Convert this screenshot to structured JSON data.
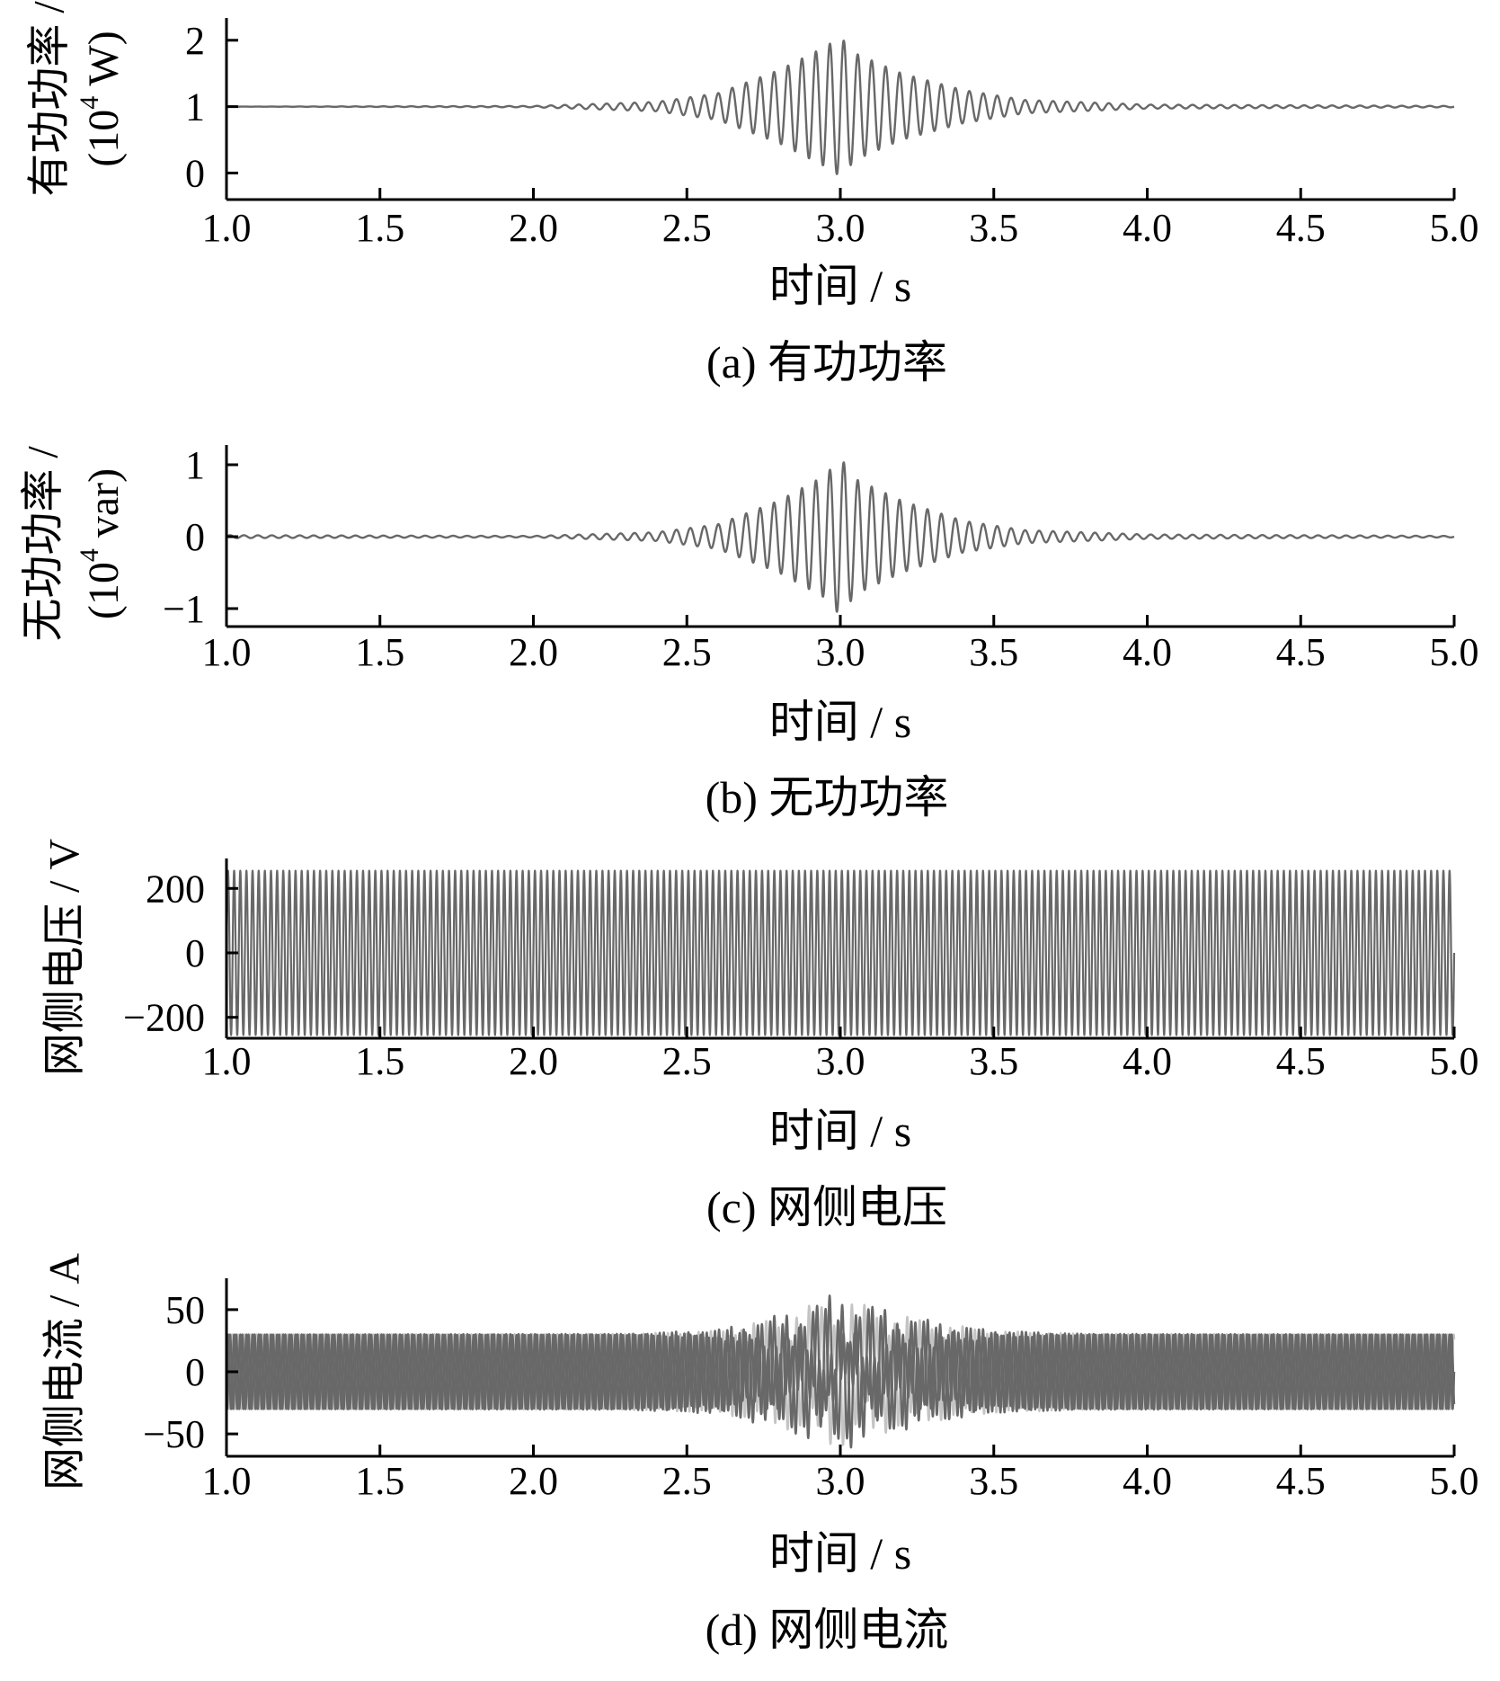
{
  "colors": {
    "signal_dark": "#686868",
    "signal_light": "#c4c4c4",
    "axis": "#000000"
  },
  "chart_data": [
    {
      "type": "line",
      "panel": "a",
      "caption": "(a)  有功功率",
      "xlabel": "时间 / s",
      "ylabel_line1": "有功功率 /",
      "ylabel_line2_pre": "(10",
      "ylabel_line2_sup": "4",
      "ylabel_line2_post": " W)",
      "xlim": [
        1.0,
        5.0
      ],
      "ylim": [
        -0.4,
        2.2
      ],
      "xticks": [
        "1.0",
        "1.5",
        "2.0",
        "2.5",
        "3.0",
        "3.5",
        "4.0",
        "4.5",
        "5.0"
      ],
      "yticks": [
        {
          "value": 2,
          "label": "2"
        },
        {
          "value": 1,
          "label": "1"
        },
        {
          "value": 0,
          "label": "0"
        }
      ],
      "series": [
        {
          "color_role": "signal_dark",
          "waveform": "oscillation",
          "baseline": 1.0,
          "frequency_hz": 22,
          "envelope": [
            [
              1.0,
              0.0
            ],
            [
              2.0,
              0.01
            ],
            [
              2.4,
              0.07
            ],
            [
              2.6,
              0.2
            ],
            [
              2.8,
              0.55
            ],
            [
              2.95,
              0.9
            ],
            [
              3.0,
              1.05
            ],
            [
              3.05,
              0.8
            ],
            [
              3.2,
              0.5
            ],
            [
              3.4,
              0.25
            ],
            [
              3.6,
              0.1
            ],
            [
              4.0,
              0.03
            ],
            [
              5.0,
              0.01
            ]
          ]
        }
      ]
    },
    {
      "type": "line",
      "panel": "b",
      "caption": "(b)  无功功率",
      "xlabel": "时间 / s",
      "ylabel_line1": "无功功率 /",
      "ylabel_line2_pre": "(10",
      "ylabel_line2_sup": "4",
      "ylabel_line2_post": " var)",
      "xlim": [
        1.0,
        5.0
      ],
      "ylim": [
        -1.25,
        1.15
      ],
      "xticks": [
        "1.0",
        "1.5",
        "2.0",
        "2.5",
        "3.0",
        "3.5",
        "4.0",
        "4.5",
        "5.0"
      ],
      "yticks": [
        {
          "value": 1,
          "label": "1"
        },
        {
          "value": 0,
          "label": "0"
        },
        {
          "value": -1,
          "label": "−1"
        }
      ],
      "series": [
        {
          "color_role": "signal_dark",
          "waveform": "oscillation",
          "baseline": 0.0,
          "frequency_hz": 22,
          "envelope": [
            [
              1.0,
              0.02
            ],
            [
              2.0,
              0.01
            ],
            [
              2.4,
              0.06
            ],
            [
              2.6,
              0.17
            ],
            [
              2.8,
              0.5
            ],
            [
              2.95,
              0.85
            ],
            [
              3.0,
              1.1
            ],
            [
              3.05,
              0.8
            ],
            [
              3.2,
              0.5
            ],
            [
              3.4,
              0.22
            ],
            [
              3.6,
              0.09
            ],
            [
              4.0,
              0.03
            ],
            [
              5.0,
              0.01
            ]
          ]
        }
      ]
    },
    {
      "type": "line",
      "panel": "c",
      "caption": "(c)  网侧电压",
      "xlabel": "时间 / s",
      "ylabel": "网侧电压 / V",
      "xlim": [
        1.0,
        5.0
      ],
      "ylim": [
        -265,
        265
      ],
      "xticks": [
        "1.0",
        "1.5",
        "2.0",
        "2.5",
        "3.0",
        "3.5",
        "4.0",
        "4.5",
        "5.0"
      ],
      "yticks": [
        {
          "value": 200,
          "label": "200"
        },
        {
          "value": 0,
          "label": "0"
        },
        {
          "value": -200,
          "label": "−200"
        }
      ],
      "series": [
        {
          "color_role": "signal_dark",
          "waveform": "sine",
          "amplitude": 255,
          "frequency_hz": 50,
          "phase_deg": 0
        }
      ]
    },
    {
      "type": "line",
      "panel": "d",
      "caption": "(d)  网侧电流",
      "xlabel": "时间 / s",
      "ylabel": "网侧电流 / A",
      "xlim": [
        1.0,
        5.0
      ],
      "ylim": [
        -68,
        68
      ],
      "xticks": [
        "1.0",
        "1.5",
        "2.0",
        "2.5",
        "3.0",
        "3.5",
        "4.0",
        "4.5",
        "5.0"
      ],
      "yticks": [
        {
          "value": 50,
          "label": "50"
        },
        {
          "value": 0,
          "label": "0"
        },
        {
          "value": -50,
          "label": "−50"
        }
      ],
      "series": [
        {
          "color_role": "signal_light",
          "waveform": "sine_with_beat",
          "amplitude": 30,
          "frequency_hz": 50,
          "phase_deg": 120,
          "beat": {
            "frequency_hz": 22,
            "phase_deg": 180,
            "envelope": [
              [
                1.0,
                0
              ],
              [
                2.3,
                0.5
              ],
              [
                2.6,
                3
              ],
              [
                2.8,
                14
              ],
              [
                2.95,
                28
              ],
              [
                3.0,
                32
              ],
              [
                3.1,
                22
              ],
              [
                3.3,
                10
              ],
              [
                3.5,
                3
              ],
              [
                3.8,
                0.5
              ],
              [
                5.0,
                0
              ]
            ]
          }
        },
        {
          "color_role": "signal_dark",
          "waveform": "sine_with_beat",
          "amplitude": 30,
          "frequency_hz": 50,
          "phase_deg": 0,
          "beat": {
            "frequency_hz": 22,
            "phase_deg": 0,
            "envelope": [
              [
                1.0,
                0
              ],
              [
                2.3,
                0.5
              ],
              [
                2.6,
                4
              ],
              [
                2.8,
                16
              ],
              [
                2.95,
                30
              ],
              [
                3.0,
                35
              ],
              [
                3.1,
                24
              ],
              [
                3.3,
                11
              ],
              [
                3.5,
                3
              ],
              [
                3.8,
                0.5
              ],
              [
                5.0,
                0
              ]
            ]
          }
        },
        {
          "color_role": "signal_dark",
          "waveform": "sine_with_beat",
          "amplitude": 30,
          "frequency_hz": 50,
          "phase_deg": 240,
          "beat": {
            "frequency_hz": 22,
            "phase_deg": 90,
            "envelope": [
              [
                1.0,
                0
              ],
              [
                2.3,
                0.5
              ],
              [
                2.6,
                3
              ],
              [
                2.8,
                12
              ],
              [
                2.95,
                22
              ],
              [
                3.0,
                25
              ],
              [
                3.1,
                20
              ],
              [
                3.3,
                9
              ],
              [
                3.5,
                3
              ],
              [
                3.8,
                0.5
              ],
              [
                5.0,
                0
              ]
            ]
          }
        }
      ]
    }
  ]
}
